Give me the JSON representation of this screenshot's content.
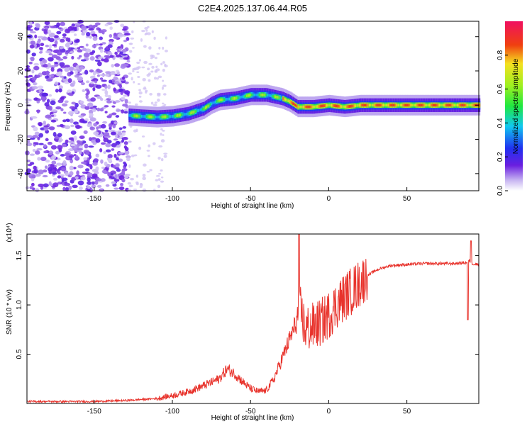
{
  "title": "C2E4.2025.137.06.44.R05",
  "chart_data": [
    {
      "type": "heatmap",
      "xlabel": "Height of straight line (km)",
      "ylabel": "Frequency (Hz)",
      "xlim": [
        -193,
        96
      ],
      "ylim": [
        -50,
        49
      ],
      "xticks": [
        "-150",
        "-100",
        "-50",
        "0",
        "50"
      ],
      "yticks": [
        "-40",
        "-20",
        "0",
        "20",
        "40"
      ],
      "colorbar": {
        "label": "Normalized spectral amplitude",
        "range": [
          0,
          1
        ],
        "ticks": [
          "0.0",
          "0.2",
          "0.4",
          "0.6",
          "0.8"
        ]
      },
      "ridge": {
        "x": [
          -128,
          -120,
          -110,
          -100,
          -90,
          -80,
          -75,
          -70,
          -60,
          -55,
          -50,
          -45,
          -40,
          -35,
          -30,
          -25,
          -20,
          -10,
          0,
          10,
          20,
          40,
          60,
          80,
          96
        ],
        "y": [
          -6,
          -6.5,
          -7,
          -6.5,
          -5,
          -2,
          1,
          3,
          4,
          5,
          6,
          6,
          6,
          5,
          4,
          2,
          -1,
          -1,
          0,
          -1,
          0,
          0,
          0,
          0,
          0
        ]
      }
    },
    {
      "type": "line",
      "xlabel": "Height of straight line (km)",
      "ylabel": "SNR (10 * v/v)",
      "yunit": "(x10⁴)",
      "xlim": [
        -193,
        96
      ],
      "ylim": [
        0,
        1.72
      ],
      "xticks": [
        "-150",
        "-100",
        "-50",
        "0",
        "50"
      ],
      "yticks": [
        "0.5",
        "1.0",
        "1.5"
      ],
      "color": "#e8332c",
      "series": [
        {
          "x": [
            -193,
            -150,
            -130,
            -110,
            -100,
            -90,
            -80,
            -70,
            -65,
            -60,
            -55,
            -50,
            -45,
            -40,
            -35,
            -30,
            -25,
            -20,
            -18,
            -15,
            -10,
            -5,
            0,
            5,
            10,
            15,
            20,
            25,
            30,
            35,
            40,
            50,
            60,
            70,
            80,
            88,
            90,
            92,
            96
          ],
          "y": [
            0.02,
            0.02,
            0.03,
            0.05,
            0.08,
            0.12,
            0.18,
            0.25,
            0.35,
            0.3,
            0.22,
            0.15,
            0.12,
            0.13,
            0.25,
            0.45,
            0.65,
            0.85,
            0.95,
            0.75,
            0.78,
            0.82,
            0.9,
            1.0,
            1.08,
            1.15,
            1.22,
            1.3,
            1.35,
            1.38,
            1.4,
            1.41,
            1.42,
            1.42,
            1.42,
            1.43,
            1.45,
            1.42,
            1.41
          ]
        }
      ]
    }
  ]
}
